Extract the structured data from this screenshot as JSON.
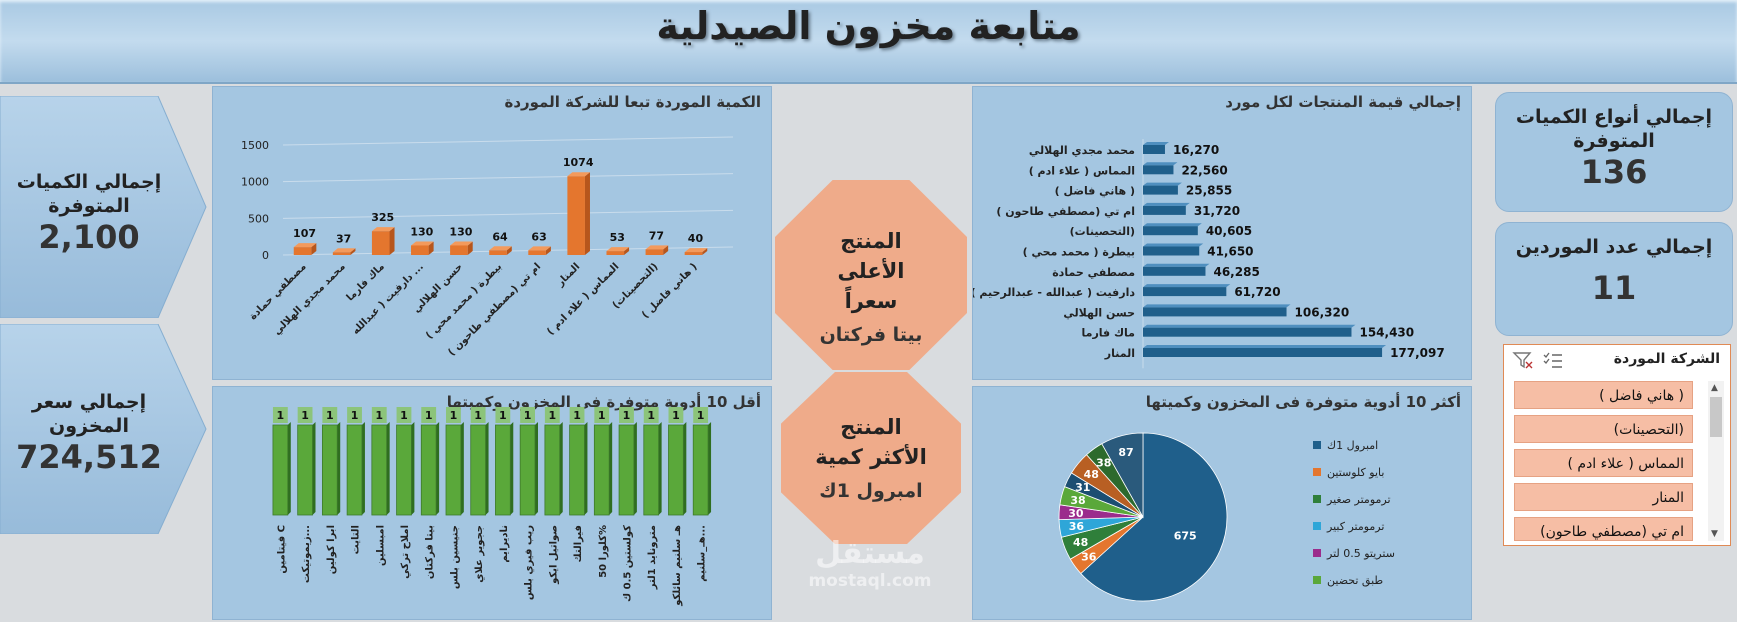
{
  "header": {
    "title": "متابعة مخزون الصيدلية"
  },
  "kpis": {
    "total_qty": {
      "label": "إجمالي الكميات المتوفرة",
      "value": "2,100"
    },
    "total_price": {
      "label": "إجمالي سعر المخزون",
      "value": "724,512"
    },
    "qty_types": {
      "label": "إجمالي أنواع الكميات المتوفرة",
      "value": "136"
    },
    "suppliers": {
      "label": "إجمالي عدد الموردين",
      "value": "11"
    }
  },
  "highlights": {
    "top_price": {
      "label": "المنتج الأعلى سعراً",
      "value": "بيتا فركتان"
    },
    "top_qty": {
      "label": "المنتج الأكثر كمية",
      "value": "امبرول 1ك"
    }
  },
  "slicer": {
    "title": "الشركة الموردة",
    "items": [
      "( هاني فاضل )",
      "(التحصينات)",
      "المماس ( علاء ادم )",
      "المنار",
      "ام تي (مصطفي طاحون)"
    ]
  },
  "watermark": {
    "text": "مستقل",
    "url": "mostaql.com"
  },
  "colors": {
    "orange": "#e4762e",
    "blue": "#1f5f8b",
    "green": "#5aa83a"
  },
  "chart_data": [
    {
      "type": "bar",
      "title": "الكمية الموردة تبعا للشركة الموردة",
      "categories": [
        "مصطفي حمادة",
        "محمد مجدي الهلالي",
        "ماك فارما",
        "دارفيت ( عبدالله ...",
        "حسن الهلالي",
        "بيطرة ( محمد محي )",
        "ام تي (مصطفي طاحون )",
        "المنار",
        "المماس ( علاء ادم )",
        "(التحصينات)",
        "( هاني فاضل )"
      ],
      "values": [
        107,
        37,
        325,
        130,
        130,
        64,
        63,
        1074,
        53,
        77,
        40
      ],
      "ylim": [
        0,
        1500
      ],
      "yticks": [
        0,
        500,
        1000,
        1500
      ]
    },
    {
      "type": "bar",
      "orientation": "horizontal",
      "title": "إجمالي قيمة المنتجات لكل مورد",
      "categories": [
        "محمد مجدي الهلالي",
        "المماس ( علاء ادم )",
        "( هاني فاضل )",
        "ام تي (مصطفي طاحون )",
        "(التحصينات)",
        "بيطرة ( محمد محي )",
        "مصطفي حمادة",
        "دارفيت ( عبدالله - عبدالرحيم )",
        "حسن الهلالي",
        "ماك فارما",
        "المنار"
      ],
      "values": [
        16270,
        22560,
        25855,
        31720,
        40605,
        41650,
        46285,
        61720,
        106320,
        154430,
        177097
      ],
      "value_labels": [
        "16,270",
        "22,560",
        "25,855",
        "31,720",
        "40,605",
        "41,650",
        "46,285",
        "61,720",
        "106,320",
        "154,430",
        "177,097"
      ]
    },
    {
      "type": "bar",
      "title": "أقل 10 أدوية متوفرة فى المخزون وكميتها",
      "categories": [
        "فيتامين C",
        "زيموتيكت...",
        "ابرا كولين",
        "التايت",
        "امبسلين",
        "املاح تركي",
        "بيتا فركتان",
        "جنيسين بلس",
        "ججوير علاي",
        "ناديرايم",
        "ريب فيري بلس",
        "صواتيل ايكو",
        "فيرالتك",
        "كلورا 50%",
        "كولستين 0.5 ك",
        "مترونايد 1لتر",
        "هـ سلنيم سائلكو",
        "هـ_سلنيم..."
      ],
      "values": [
        1,
        1,
        1,
        1,
        1,
        1,
        1,
        1,
        1,
        1,
        1,
        1,
        1,
        1,
        1,
        1,
        1,
        1
      ]
    },
    {
      "type": "pie",
      "title": "أكثر 10 أدوية متوفرة فى المخزون وكميتها",
      "legend": [
        "امبرول 1ك",
        "بايو كلوستين",
        "ترمومتر صغير",
        "ترمومتر كبير",
        "ستريتو 0.5 لتر",
        "طبق تحضين"
      ],
      "values": [
        675,
        36,
        48,
        36,
        30,
        38,
        31,
        48,
        38,
        87
      ],
      "slice_colors": [
        "#1f5f8b",
        "#e4762e",
        "#2f7f3a",
        "#2ea6d8",
        "#9b2c8c",
        "#5aa83a",
        "#1c4e72",
        "#b85f23",
        "#2d6a2d",
        "#2a5a7c"
      ],
      "legend_placement": "right"
    }
  ]
}
